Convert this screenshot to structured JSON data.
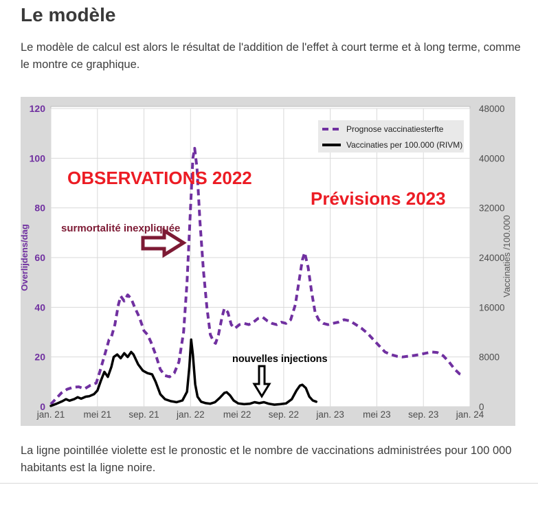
{
  "page": {
    "title": "Le modèle",
    "intro": "Le modèle de calcul est alors le résultat de l'addition de l'effet à court terme et à long terme, comme le montre ce graphique.",
    "caption": "La ligne pointillée violette est le pronostic et le nombre de vaccinations administrées pour 100 000 habitants est la ligne noire."
  },
  "colors": {
    "accent_purple": "#7030a0",
    "annotation_red": "#ec1c24",
    "annotation_maroon": "#7d1a34",
    "chart_background": "#d9d9d9",
    "series_black": "#000000"
  },
  "chart_data": {
    "type": "line",
    "title": "",
    "grid": true,
    "legend_position": "top-right",
    "x_axis": {
      "unit": "months since jan. 2021",
      "tick_labels": [
        "jan. 21",
        "mei 21",
        "sep. 21",
        "jan. 22",
        "mei 22",
        "sep. 22",
        "jan. 23",
        "mei 23",
        "sep. 23",
        "jan. 24"
      ],
      "tick_month_index": [
        0,
        4,
        8,
        12,
        16,
        20,
        24,
        28,
        32,
        36
      ]
    },
    "y_axis_left": {
      "title": "Overlijdens/dag",
      "ticks": [
        0,
        20,
        40,
        60,
        80,
        100,
        120
      ],
      "range": [
        0,
        120
      ]
    },
    "y_axis_right": {
      "title": "Vaccinaties /100.000",
      "ticks": [
        0,
        8000,
        16000,
        24000,
        32000,
        40000,
        48000
      ],
      "range": [
        0,
        48000
      ]
    },
    "left_to_right_axis_factor": 400,
    "series": [
      {
        "name": "Prognose vaccinatiesterfte",
        "axis": "left",
        "color": "#7030a0",
        "line_style": "dashed",
        "points": [
          [
            0,
            1
          ],
          [
            0.4,
            3
          ],
          [
            0.9,
            5.5
          ],
          [
            1.4,
            7
          ],
          [
            1.9,
            7.8
          ],
          [
            2.4,
            8
          ],
          [
            2.9,
            7.2
          ],
          [
            3.4,
            8.6
          ],
          [
            3.9,
            9.5
          ],
          [
            4.2,
            14
          ],
          [
            4.7,
            22
          ],
          [
            5,
            27
          ],
          [
            5.2,
            28
          ],
          [
            5.5,
            33
          ],
          [
            5.8,
            41
          ],
          [
            6,
            44.5
          ],
          [
            6.3,
            42.5
          ],
          [
            6.6,
            45
          ],
          [
            6.9,
            43.5
          ],
          [
            7.2,
            40
          ],
          [
            7.6,
            36
          ],
          [
            8,
            30.5
          ],
          [
            8.3,
            29
          ],
          [
            8.6,
            26
          ],
          [
            9,
            21
          ],
          [
            9.4,
            15
          ],
          [
            9.8,
            12.5
          ],
          [
            10.2,
            12
          ],
          [
            10.6,
            13.5
          ],
          [
            11,
            18
          ],
          [
            11.4,
            30
          ],
          [
            11.7,
            50
          ],
          [
            12,
            80
          ],
          [
            12.2,
            100
          ],
          [
            12.35,
            104
          ],
          [
            12.55,
            96
          ],
          [
            12.8,
            75
          ],
          [
            13.1,
            55
          ],
          [
            13.4,
            40
          ],
          [
            13.7,
            29
          ],
          [
            14,
            26
          ],
          [
            14.15,
            25.5
          ],
          [
            14.4,
            29
          ],
          [
            14.7,
            36
          ],
          [
            14.9,
            39.5
          ],
          [
            15.2,
            38
          ],
          [
            15.5,
            33
          ],
          [
            15.8,
            31.5
          ],
          [
            16.2,
            33
          ],
          [
            16.6,
            33.5
          ],
          [
            17,
            33
          ],
          [
            17.4,
            34
          ],
          [
            17.8,
            35.5
          ],
          [
            18.2,
            36
          ],
          [
            18.6,
            34.5
          ],
          [
            19,
            33.5
          ],
          [
            19.4,
            33
          ],
          [
            19.8,
            34
          ],
          [
            20.2,
            33.5
          ],
          [
            20.6,
            35
          ],
          [
            21,
            41
          ],
          [
            21.3,
            50
          ],
          [
            21.6,
            59
          ],
          [
            21.8,
            62
          ],
          [
            22.1,
            56
          ],
          [
            22.4,
            46
          ],
          [
            22.7,
            38
          ],
          [
            23,
            35
          ],
          [
            23.4,
            33.5
          ],
          [
            23.8,
            33
          ],
          [
            24.2,
            33.5
          ],
          [
            24.7,
            34
          ],
          [
            25.2,
            35
          ],
          [
            25.7,
            34.5
          ],
          [
            26.2,
            33
          ],
          [
            26.7,
            31.5
          ],
          [
            27.2,
            29.5
          ],
          [
            27.7,
            27
          ],
          [
            28.2,
            24.5
          ],
          [
            28.7,
            22
          ],
          [
            29.2,
            21
          ],
          [
            29.7,
            20.3
          ],
          [
            30.2,
            20
          ],
          [
            30.7,
            20.3
          ],
          [
            31.2,
            20.6
          ],
          [
            31.7,
            21
          ],
          [
            32.2,
            21.5
          ],
          [
            32.7,
            22
          ],
          [
            33.2,
            21.8
          ],
          [
            33.7,
            20.5
          ],
          [
            34.2,
            18
          ],
          [
            34.7,
            15
          ],
          [
            35.1,
            13.2
          ],
          [
            35.5,
            12.5
          ]
        ]
      },
      {
        "name": "Vaccinaties per 100.000 (RIVM)",
        "axis": "left",
        "color": "#000000",
        "line_style": "solid",
        "points": [
          [
            0,
            0.3
          ],
          [
            0.5,
            1.2
          ],
          [
            1,
            2.2
          ],
          [
            1.3,
            3
          ],
          [
            1.6,
            2.4
          ],
          [
            2,
            3
          ],
          [
            2.3,
            3.8
          ],
          [
            2.6,
            3.2
          ],
          [
            3,
            4
          ],
          [
            3.3,
            4.2
          ],
          [
            3.7,
            5
          ],
          [
            4,
            6.5
          ],
          [
            4.3,
            10.5
          ],
          [
            4.6,
            14
          ],
          [
            4.9,
            12
          ],
          [
            5.2,
            16
          ],
          [
            5.4,
            20
          ],
          [
            5.7,
            21
          ],
          [
            6,
            19.5
          ],
          [
            6.3,
            21.5
          ],
          [
            6.6,
            20
          ],
          [
            6.9,
            22
          ],
          [
            7.1,
            21
          ],
          [
            7.5,
            17
          ],
          [
            7.9,
            14.5
          ],
          [
            8.3,
            13.5
          ],
          [
            8.7,
            13
          ],
          [
            9,
            10
          ],
          [
            9.4,
            5
          ],
          [
            9.8,
            3
          ],
          [
            10.3,
            2.2
          ],
          [
            10.8,
            1.8
          ],
          [
            11.3,
            2.5
          ],
          [
            11.7,
            6
          ],
          [
            11.9,
            16
          ],
          [
            12.05,
            27
          ],
          [
            12.2,
            21
          ],
          [
            12.4,
            9
          ],
          [
            12.6,
            4
          ],
          [
            12.9,
            2
          ],
          [
            13.3,
            1.4
          ],
          [
            13.7,
            1.2
          ],
          [
            14.1,
            1.8
          ],
          [
            14.5,
            3.5
          ],
          [
            14.9,
            5.5
          ],
          [
            15.1,
            5.8
          ],
          [
            15.4,
            4.5
          ],
          [
            15.7,
            2.5
          ],
          [
            16.1,
            1.3
          ],
          [
            16.6,
            1
          ],
          [
            17.1,
            1.2
          ],
          [
            17.5,
            1.8
          ],
          [
            17.9,
            1.4
          ],
          [
            18.3,
            1.8
          ],
          [
            18.7,
            1.2
          ],
          [
            19.2,
            0.8
          ],
          [
            19.7,
            1
          ],
          [
            20.2,
            1.3
          ],
          [
            20.7,
            3
          ],
          [
            21.1,
            6.5
          ],
          [
            21.4,
            8.5
          ],
          [
            21.6,
            8.8
          ],
          [
            21.9,
            7.5
          ],
          [
            22.2,
            4
          ],
          [
            22.5,
            2.5
          ],
          [
            22.8,
            2
          ]
        ]
      }
    ],
    "annotations": [
      {
        "text": "OBSERVATIONS 2022",
        "color": "#ec1c24"
      },
      {
        "text": "Prévisions 2023",
        "color": "#ec1c24"
      },
      {
        "text": "surmortalité inexpliquée",
        "color": "#7d1a34"
      },
      {
        "text": "nouvelles injections",
        "color": "#000000"
      }
    ]
  }
}
